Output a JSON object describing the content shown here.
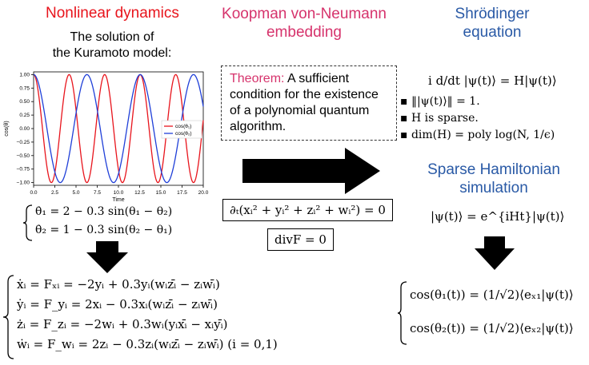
{
  "col1": {
    "heading": "Nonlinear dynamics",
    "sub1": "The solution of",
    "sub2": "the Kuramoto model:",
    "eq_theta1": "θ̇₁ = 2 − 0.3 sin(θ₁ − θ₂)",
    "eq_theta2": "θ̇₂ = 1 − 0.3 sin(θ₂ − θ₁)",
    "eq_x": "ẋᵢ = Fₓᵢ = −2yᵢ + 0.3yᵢ(wᵢzᵢ̄ − zᵢwᵢ̄)",
    "eq_y": "ẏᵢ = F_yᵢ = 2xᵢ − 0.3xᵢ(wᵢzᵢ̄ − zᵢwᵢ̄)",
    "eq_z": "żᵢ = F_zᵢ = −2wᵢ + 0.3wᵢ(yᵢxᵢ̄ − xᵢyᵢ̄)",
    "eq_w": "ẇᵢ = F_wᵢ = 2zᵢ − 0.3zᵢ(wᵢzᵢ̄ − zᵢwᵢ̄)   (i = 0,1)"
  },
  "col2": {
    "heading_line1": "Koopman von-Neumann",
    "heading_line2": "embedding",
    "theorem_label": "Theorem:",
    "theorem_text": " A sufficient condition for the existence of a polynomial quantum algorithm.",
    "eq_conserve": "∂ₜ(xᵢ² + yᵢ² + zᵢ² + wᵢ²) = 0",
    "eq_div": "divF = 0"
  },
  "col3": {
    "heading_line1": "Shrödinger",
    "heading_line2": "equation",
    "schrodinger": "i d/dt |ψ(t)⟩ = H|ψ(t)⟩",
    "bullets": [
      "‖|ψ(t)⟩‖ = 1.",
      "H is sparse.",
      "dim(H) = poly log(N, 1/ϵ)"
    ],
    "sim_line1": "Sparse Hamiltonian",
    "sim_line2": "simulation",
    "evolution": "|ψ(t)⟩ = e^{iHt}|ψ(t)⟩",
    "cos1": "cos(θ₁(t)) = (1/√2)⟨eₓ₁|ψ(t)⟩",
    "cos2": "cos(θ₂(t)) = (1/√2)⟨eₓ₂|ψ(t)⟩"
  },
  "colors": {
    "red": "#e8141c",
    "pink": "#d6336c",
    "blue": "#2a5aa6"
  },
  "chart_data": {
    "type": "line",
    "xlabel": "Time",
    "ylabel": "cos(θ)",
    "xlim": [
      0,
      20
    ],
    "ylim": [
      -1.05,
      1.05
    ],
    "xticks": [
      "0.0",
      "2.5",
      "5.0",
      "7.5",
      "10.0",
      "12.5",
      "15.0",
      "17.5",
      "20.0"
    ],
    "yticks": [
      "1.00",
      "0.75",
      "0.50",
      "0.25",
      "0.00",
      "−0.25",
      "−0.50",
      "−0.75",
      "−1.00"
    ],
    "legend_position": "center-right",
    "series": [
      {
        "name": "cos(θ₁)",
        "color": "#e8141c",
        "omega": 1.5
      },
      {
        "name": "cos(θ₂)",
        "color": "#1f3fd8",
        "omega": 1.0
      }
    ]
  }
}
